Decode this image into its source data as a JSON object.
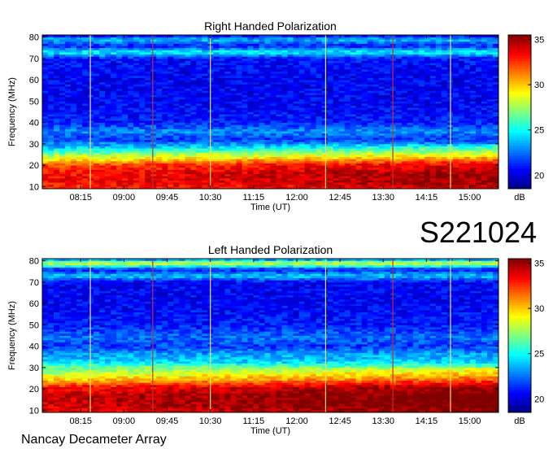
{
  "figure": {
    "identifier": "S221024",
    "footer": "Nancay Decameter Array"
  },
  "chart_data": [
    {
      "type": "heatmap",
      "title": "Right Handed Polarization",
      "xlabel": "Time (UT)",
      "ylabel": "Frequency (MHz)",
      "colorbar_label": "dB",
      "x_ticks": [
        "08:15",
        "09:00",
        "09:45",
        "10:30",
        "11:15",
        "12:00",
        "12:45",
        "13:30",
        "14:15",
        "15:00"
      ],
      "x_range": [
        "07:35",
        "15:30"
      ],
      "y_ticks": [
        10,
        20,
        30,
        40,
        50,
        60,
        70,
        80
      ],
      "y_range": [
        9,
        81
      ],
      "colorbar_ticks": [
        20,
        25,
        30,
        35
      ],
      "colorbar_range": [
        18.5,
        35.5
      ],
      "colormap": "jet",
      "intensity_profile": [
        {
          "freq": 9,
          "db": 33
        },
        {
          "freq": 12,
          "db": 34
        },
        {
          "freq": 16,
          "db": 34
        },
        {
          "freq": 20,
          "db": 33
        },
        {
          "freq": 23,
          "db": 30
        },
        {
          "freq": 26,
          "db": 27
        },
        {
          "freq": 29,
          "db": 24
        },
        {
          "freq": 32,
          "db": 21.5
        },
        {
          "freq": 36,
          "db": 23
        },
        {
          "freq": 40,
          "db": 21
        },
        {
          "freq": 50,
          "db": 20.5
        },
        {
          "freq": 60,
          "db": 20.5
        },
        {
          "freq": 70,
          "db": 20.8
        },
        {
          "freq": 73,
          "db": 25
        },
        {
          "freq": 76,
          "db": 21
        },
        {
          "freq": 79,
          "db": 24
        },
        {
          "freq": 81,
          "db": 20
        }
      ],
      "vertical_markers": [
        {
          "time": "08:25",
          "color": "#f0e060"
        },
        {
          "time": "09:30",
          "color": "#c03030"
        },
        {
          "time": "10:30",
          "color": "#f0e060"
        },
        {
          "time": "12:30",
          "color": "#f0e060"
        },
        {
          "time": "13:40",
          "color": "#c03030"
        },
        {
          "time": "14:40",
          "color": "#f0e060"
        }
      ]
    },
    {
      "type": "heatmap",
      "title": "Left Handed Polarization",
      "xlabel": "Time (UT)",
      "ylabel": "Frequency (MHz)",
      "colorbar_label": "dB",
      "x_ticks": [
        "08:15",
        "09:00",
        "09:45",
        "10:30",
        "11:15",
        "12:00",
        "12:45",
        "13:30",
        "14:15",
        "15:00"
      ],
      "x_range": [
        "07:35",
        "15:30"
      ],
      "y_ticks": [
        10,
        20,
        30,
        40,
        50,
        60,
        70,
        80
      ],
      "y_range": [
        9,
        81
      ],
      "colorbar_ticks": [
        20,
        25,
        30,
        35
      ],
      "colorbar_range": [
        18.5,
        35.5
      ],
      "colormap": "jet",
      "intensity_profile": [
        {
          "freq": 9,
          "db": 34
        },
        {
          "freq": 12,
          "db": 35
        },
        {
          "freq": 17,
          "db": 35
        },
        {
          "freq": 21,
          "db": 34
        },
        {
          "freq": 24,
          "db": 31
        },
        {
          "freq": 27,
          "db": 29
        },
        {
          "freq": 30,
          "db": 27
        },
        {
          "freq": 33,
          "db": 24
        },
        {
          "freq": 36,
          "db": 23.5
        },
        {
          "freq": 40,
          "db": 21.5
        },
        {
          "freq": 44,
          "db": 22.5
        },
        {
          "freq": 50,
          "db": 21
        },
        {
          "freq": 60,
          "db": 20.5
        },
        {
          "freq": 70,
          "db": 20.5
        },
        {
          "freq": 73,
          "db": 24
        },
        {
          "freq": 76,
          "db": 21
        },
        {
          "freq": 79,
          "db": 29
        },
        {
          "freq": 81,
          "db": 22
        }
      ],
      "vertical_markers": [
        {
          "time": "08:25",
          "color": "#f0e060"
        },
        {
          "time": "09:30",
          "color": "#c03030"
        },
        {
          "time": "10:30",
          "color": "#f0e060"
        },
        {
          "time": "12:30",
          "color": "#f0e060"
        },
        {
          "time": "13:40",
          "color": "#c03030"
        },
        {
          "time": "14:40",
          "color": "#f0e060"
        }
      ]
    }
  ]
}
